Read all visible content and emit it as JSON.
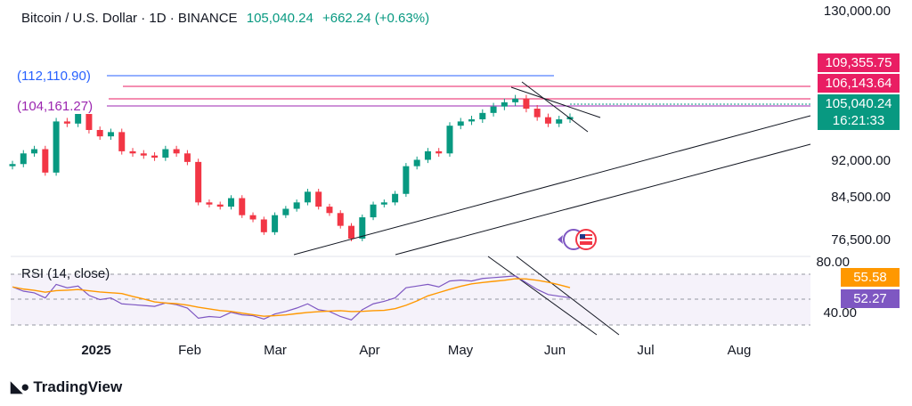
{
  "header": {
    "symbol": "Bitcoin / U.S. Dollar · 1D · BINANCE",
    "price": "105,040.24",
    "change": "+662.24 (+0.63%)"
  },
  "price_axis_labels": [
    "130,000.00",
    "92,000.00",
    "84,500.00",
    "76,500.00",
    "80.00",
    "40.00"
  ],
  "price_tags": [
    {
      "text": "109,355.75",
      "color": "#e91e63"
    },
    {
      "text": "106,143.64",
      "color": "#e91e63"
    },
    {
      "text": "105,040.24",
      "color": "#089981"
    },
    {
      "text": "16:21:33",
      "color": "#089981"
    }
  ],
  "rsi_tags": [
    {
      "text": "55.58",
      "color": "#ff9800"
    },
    {
      "text": "52.27",
      "color": "#7e57c2"
    }
  ],
  "levels": [
    {
      "text": "(112,110.90)",
      "color": "#2962ff"
    },
    {
      "text": "(104,161.27)",
      "color": "#9c27b0"
    }
  ],
  "time_axis": [
    "2025",
    "Feb",
    "Mar",
    "Apr",
    "May",
    "Jun",
    "Jul",
    "Aug"
  ],
  "rsi_label": "RSI (14, close)",
  "logo_text": "TradingView",
  "colors": {
    "up": "#089981",
    "down": "#f23645",
    "rsi": "#7e57c2",
    "rsi_ma": "#ff9800"
  },
  "chart_data": {
    "type": "candlestick",
    "title": "Bitcoin / U.S. Dollar · 1D · BINANCE",
    "series": [
      {
        "name": "Bitcoin / U.S. Dollar",
        "close": [
          94000,
          96500,
          97500,
          92000,
          104000,
          103500,
          105800,
          102000,
          100500,
          101500,
          97000,
          96500,
          96000,
          95500,
          97500,
          96500,
          94500,
          85000,
          84500,
          84000,
          86000,
          82000,
          81000,
          78000,
          82000,
          83500,
          85000,
          87500,
          84000,
          82500,
          79500,
          76500,
          81500,
          84500,
          85000,
          87000,
          93500,
          95000,
          97000,
          96500,
          103000,
          104000,
          104500,
          106000,
          107500,
          108500,
          109355,
          107000,
          105000,
          103500,
          104500,
          105040
        ]
      },
      {
        "name": "RSI (14, close)",
        "values": [
          65,
          60,
          58,
          52,
          68,
          64,
          66,
          55,
          50,
          52,
          45,
          44,
          43,
          42,
          46,
          44,
          40,
          28,
          30,
          29,
          35,
          32,
          31,
          27,
          33,
          36,
          40,
          45,
          38,
          36,
          30,
          26,
          38,
          45,
          48,
          52,
          64,
          66,
          68,
          65,
          72,
          73,
          72,
          75,
          76,
          77,
          78,
          70,
          62,
          56,
          54,
          52.27
        ]
      }
    ],
    "y_range": [
      72000,
      130000
    ],
    "rsi_range": [
      20,
      80
    ]
  }
}
